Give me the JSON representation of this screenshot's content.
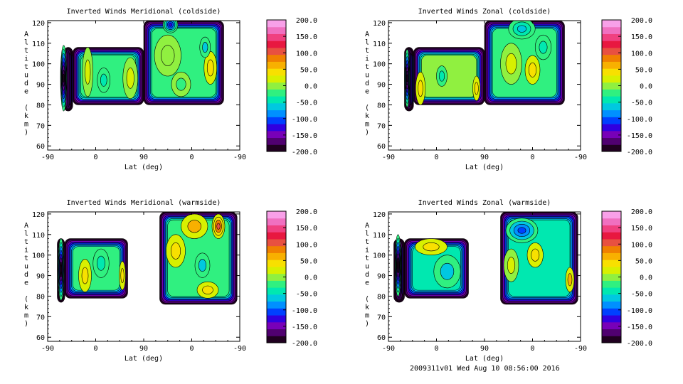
{
  "footer": "2009311v01 Wed Aug 10 08:56:00 2016",
  "colorbar": {
    "ticks": [
      "200.0",
      "150.0",
      "100.0",
      "50.0",
      "0.0",
      "-50.0",
      "-100.0",
      "-150.0",
      "-200.0"
    ],
    "colors": [
      "#200020",
      "#500070",
      "#7800b8",
      "#3000e0",
      "#0040ff",
      "#0090ff",
      "#00c8e0",
      "#00e8b0",
      "#30f080",
      "#90f040",
      "#d8f000",
      "#f8e000",
      "#f8b000",
      "#f08000",
      "#e85040",
      "#e81840",
      "#f04080",
      "#f070c0",
      "#f8a0e8"
    ]
  },
  "chart_data": [
    {
      "type": "heatmap",
      "title": "Inverted Winds Meridional (coldside)",
      "xlabel": "Lat (deg)",
      "ylabel": "Altitude (km)",
      "x_ticks": [
        "-90",
        "0",
        "90",
        "0",
        "-90"
      ],
      "y_ticks": [
        "60",
        "70",
        "80",
        "90",
        "100",
        "110",
        "120"
      ],
      "ylim": [
        58,
        121
      ],
      "x_track": [
        "-90",
        "0",
        "90",
        "0",
        "-90"
      ],
      "zlim": [
        -200,
        200
      ],
      "regions": [
        {
          "x": [
            -60,
            -43
          ],
          "y": [
            77,
            108
          ],
          "level": -120
        },
        {
          "x": [
            -43,
            90
          ],
          "y": [
            80,
            108
          ],
          "level": -15
        },
        {
          "x": [
            90,
            240
          ],
          "y": [
            80,
            121
          ],
          "level": -25
        }
      ],
      "features": [
        {
          "x": -60,
          "y": 93,
          "v": -190,
          "rx": 6,
          "ry": 16
        },
        {
          "x": 15,
          "y": 92,
          "v": -40,
          "rx": 12,
          "ry": 6
        },
        {
          "x": -15,
          "y": 96,
          "v": 15,
          "rx": 10,
          "ry": 12
        },
        {
          "x": 65,
          "y": 93,
          "v": 10,
          "rx": 14,
          "ry": 10
        },
        {
          "x": 140,
          "y": 119,
          "v": -120,
          "rx": 14,
          "ry": 4
        },
        {
          "x": 135,
          "y": 104,
          "v": 5,
          "rx": 25,
          "ry": 10
        },
        {
          "x": 215,
          "y": 98,
          "v": 30,
          "rx": 12,
          "ry": 8
        },
        {
          "x": 205,
          "y": 108,
          "v": -60,
          "rx": 10,
          "ry": 5
        },
        {
          "x": 160,
          "y": 90,
          "v": -20,
          "rx": 18,
          "ry": 6
        }
      ]
    },
    {
      "type": "heatmap",
      "title": "Inverted Winds Zonal (coldside)",
      "xlabel": "Lat (deg)",
      "ylabel": "Altitude (km)",
      "x_ticks": [
        "-90",
        "0",
        "90",
        "0",
        "-90"
      ],
      "y_ticks": [
        "60",
        "70",
        "80",
        "90",
        "100",
        "110",
        "120"
      ],
      "ylim": [
        58,
        121
      ],
      "x_track": [
        "-90",
        "0",
        "90",
        "0",
        "-90"
      ],
      "zlim": [
        -200,
        200
      ],
      "regions": [
        {
          "x": [
            -60,
            -43
          ],
          "y": [
            77,
            108
          ],
          "level": -110
        },
        {
          "x": [
            -43,
            90
          ],
          "y": [
            80,
            108
          ],
          "level": -10
        },
        {
          "x": [
            90,
            240
          ],
          "y": [
            80,
            121
          ],
          "level": -30
        }
      ],
      "features": [
        {
          "x": -55,
          "y": 93,
          "v": -190,
          "rx": 5,
          "ry": 14
        },
        {
          "x": -30,
          "y": 88,
          "v": 30,
          "rx": 9,
          "ry": 8
        },
        {
          "x": 10,
          "y": 94,
          "v": -45,
          "rx": 10,
          "ry": 5
        },
        {
          "x": 75,
          "y": 88,
          "v": 40,
          "rx": 7,
          "ry": 6
        },
        {
          "x": 180,
          "y": 97,
          "v": 35,
          "rx": 14,
          "ry": 7
        },
        {
          "x": 140,
          "y": 100,
          "v": 15,
          "rx": 20,
          "ry": 10
        },
        {
          "x": 160,
          "y": 117,
          "v": -70,
          "rx": 25,
          "ry": 5
        },
        {
          "x": 200,
          "y": 108,
          "v": -40,
          "rx": 15,
          "ry": 6
        }
      ]
    },
    {
      "type": "heatmap",
      "title": "Inverted Winds Meridional (warmside)",
      "xlabel": "Lat (deg)",
      "ylabel": "Altitude (km)",
      "x_ticks": [
        "-90",
        "0",
        "90",
        "0",
        "-90"
      ],
      "y_ticks": [
        "60",
        "70",
        "80",
        "90",
        "100",
        "110",
        "120"
      ],
      "ylim": [
        58,
        121
      ],
      "x_track": [
        "-90",
        "0",
        "90",
        "0",
        "-90"
      ],
      "zlim": [
        -200,
        200
      ],
      "regions": [
        {
          "x": [
            -72,
            -58
          ],
          "y": [
            77,
            108
          ],
          "level": -130
        },
        {
          "x": [
            -58,
            60
          ],
          "y": [
            79,
            108
          ],
          "level": -30
        },
        {
          "x": [
            120,
            265
          ],
          "y": [
            76,
            121
          ],
          "level": -20
        }
      ],
      "features": [
        {
          "x": -65,
          "y": 93,
          "v": -200,
          "rx": 6,
          "ry": 15
        },
        {
          "x": -20,
          "y": 90,
          "v": 35,
          "rx": 12,
          "ry": 8
        },
        {
          "x": 50,
          "y": 90,
          "v": 40,
          "rx": 6,
          "ry": 7
        },
        {
          "x": 10,
          "y": 96,
          "v": -45,
          "rx": 15,
          "ry": 7
        },
        {
          "x": 230,
          "y": 114,
          "v": 100,
          "rx": 12,
          "ry": 6
        },
        {
          "x": 185,
          "y": 114,
          "v": 60,
          "rx": 25,
          "ry": 6
        },
        {
          "x": 150,
          "y": 102,
          "v": 30,
          "rx": 18,
          "ry": 8
        },
        {
          "x": 200,
          "y": 95,
          "v": -60,
          "rx": 14,
          "ry": 6
        },
        {
          "x": 210,
          "y": 83,
          "v": 35,
          "rx": 20,
          "ry": 4
        }
      ]
    },
    {
      "type": "heatmap",
      "title": "Inverted Winds Zonal (warmside)",
      "xlabel": "Lat (deg)",
      "ylabel": "Altitude (km)",
      "x_ticks": [
        "-90",
        "0",
        "90",
        "0",
        "-90"
      ],
      "y_ticks": [
        "60",
        "70",
        "80",
        "90",
        "100",
        "110",
        "120"
      ],
      "ylim": [
        58,
        121
      ],
      "x_track": [
        "-90",
        "0",
        "90",
        "0",
        "-90"
      ],
      "zlim": [
        -200,
        200
      ],
      "regions": [
        {
          "x": [
            -80,
            -60
          ],
          "y": [
            77,
            108
          ],
          "level": -120
        },
        {
          "x": [
            -60,
            60
          ],
          "y": [
            79,
            108
          ],
          "level": -35
        },
        {
          "x": [
            120,
            265
          ],
          "y": [
            76,
            121
          ],
          "level": -35
        }
      ],
      "features": [
        {
          "x": -72,
          "y": 95,
          "v": -200,
          "rx": 6,
          "ry": 15
        },
        {
          "x": -10,
          "y": 104,
          "v": 30,
          "rx": 30,
          "ry": 4
        },
        {
          "x": 20,
          "y": 92,
          "v": -55,
          "rx": 25,
          "ry": 8
        },
        {
          "x": 160,
          "y": 112,
          "v": -110,
          "rx": 30,
          "ry": 6
        },
        {
          "x": 185,
          "y": 100,
          "v": 40,
          "rx": 15,
          "ry": 6
        },
        {
          "x": 250,
          "y": 88,
          "v": 50,
          "rx": 8,
          "ry": 6
        },
        {
          "x": 140,
          "y": 95,
          "v": 15,
          "rx": 14,
          "ry": 8
        }
      ]
    }
  ]
}
